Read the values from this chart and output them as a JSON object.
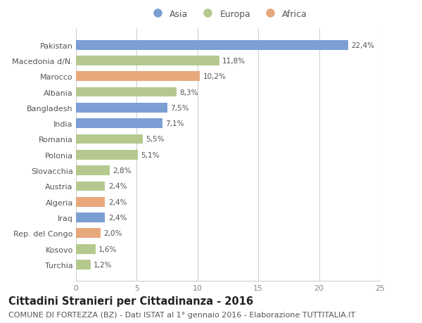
{
  "countries": [
    "Pakistan",
    "Macedonia d/N.",
    "Marocco",
    "Albania",
    "Bangladesh",
    "India",
    "Romania",
    "Polonia",
    "Slovacchia",
    "Austria",
    "Algeria",
    "Iraq",
    "Rep. del Congo",
    "Kosovo",
    "Turchia"
  ],
  "values": [
    22.4,
    11.8,
    10.2,
    8.3,
    7.5,
    7.1,
    5.5,
    5.1,
    2.8,
    2.4,
    2.4,
    2.4,
    2.0,
    1.6,
    1.2
  ],
  "labels": [
    "22,4%",
    "11,8%",
    "10,2%",
    "8,3%",
    "7,5%",
    "7,1%",
    "5,5%",
    "5,1%",
    "2,8%",
    "2,4%",
    "2,4%",
    "2,4%",
    "2,0%",
    "1,6%",
    "1,2%"
  ],
  "continents": [
    "Asia",
    "Europa",
    "Africa",
    "Europa",
    "Asia",
    "Asia",
    "Europa",
    "Europa",
    "Europa",
    "Europa",
    "Africa",
    "Asia",
    "Africa",
    "Europa",
    "Europa"
  ],
  "colors": {
    "Asia": "#7b9fd4",
    "Europa": "#b5c98e",
    "Africa": "#e8a87c"
  },
  "title": "Cittadini Stranieri per Cittadinanza - 2016",
  "subtitle": "COMUNE DI FORTEZZA (BZ) - Dati ISTAT al 1° gennaio 2016 - Elaborazione TUTTITALIA.IT",
  "xlim": [
    0,
    25
  ],
  "xticks": [
    0,
    5,
    10,
    15,
    20,
    25
  ],
  "background_color": "#ffffff",
  "grid_color": "#d0d0d0",
  "bar_height": 0.62,
  "title_fontsize": 10.5,
  "subtitle_fontsize": 8,
  "label_fontsize": 7.5,
  "tick_fontsize": 8,
  "legend_fontsize": 9
}
